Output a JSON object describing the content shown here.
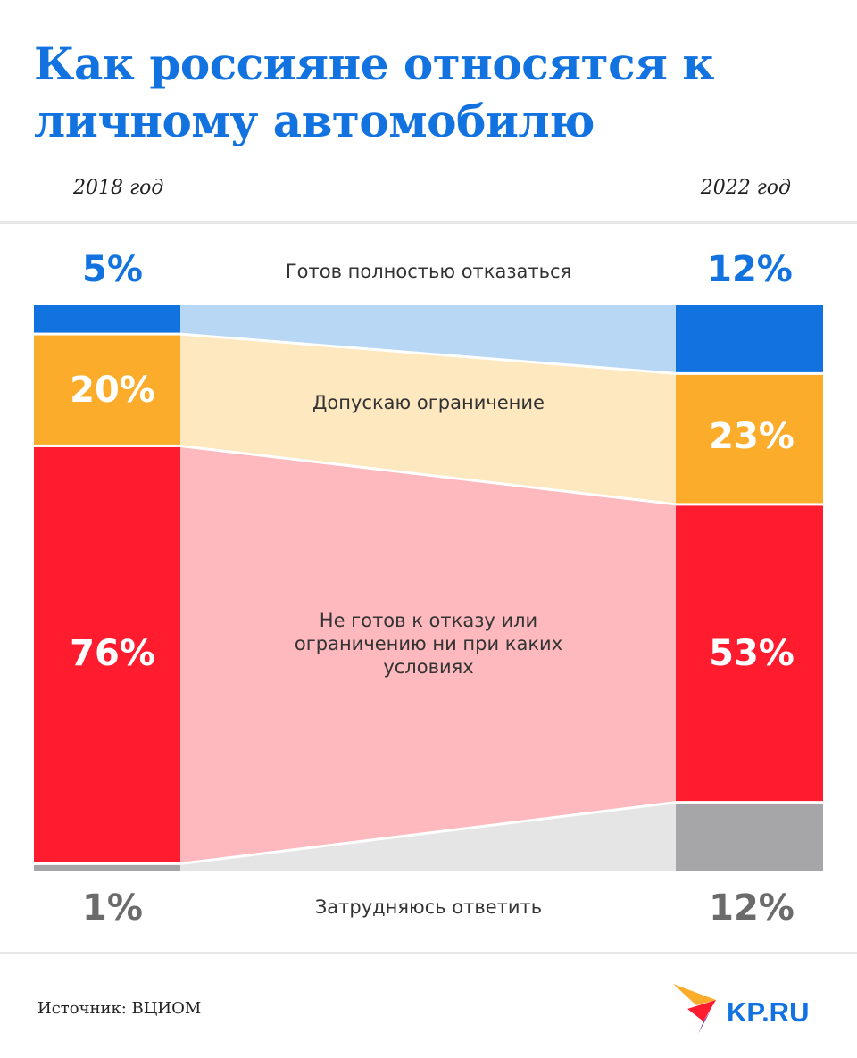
{
  "title": "Как россияне относятся к личному автомобилю",
  "years": {
    "left": "2018 год",
    "right": "2022 год"
  },
  "source": "Источник: ВЦИОМ",
  "logo": {
    "text": "KP.RU"
  },
  "colors": {
    "blue": "#1273e0",
    "blue_light": "#b8d7f5",
    "orange": "#fbac2a",
    "orange_light": "#fde8bf",
    "red": "#fe1c2e",
    "red_light": "#feb9be",
    "gray": "#a6a6a9",
    "gray_light": "#e5e5e6",
    "title": "#1273e0"
  },
  "chart_data": {
    "type": "area",
    "x": [
      "2018 год",
      "2022 год"
    ],
    "series": [
      {
        "name": "Готов полностью отказаться",
        "values": [
          5,
          12
        ],
        "labels": [
          "5%",
          "12%"
        ]
      },
      {
        "name": "Допускаю ограничение",
        "values": [
          20,
          23
        ],
        "labels": [
          "20%",
          "23%"
        ]
      },
      {
        "name": "Не готов к отказу или ограничению ни при каких условиях",
        "values": [
          76,
          53
        ],
        "labels": [
          "76%",
          "53%"
        ]
      },
      {
        "name": "Затрудняюсь ответить",
        "values": [
          1,
          12
        ],
        "labels": [
          "1%",
          "12%"
        ]
      }
    ]
  }
}
